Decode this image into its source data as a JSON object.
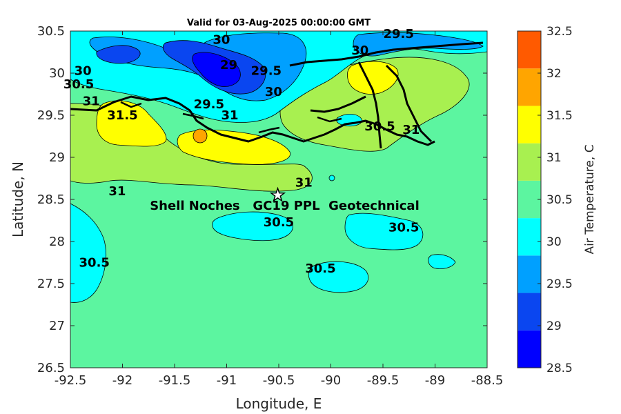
{
  "chart_data": {
    "type": "heatmap",
    "title": "Valid for 03-Aug-2025 00:00:00 GMT",
    "xlabel": "Longitude, E",
    "ylabel": "Latitude, N",
    "xlim": [
      -92.5,
      -88.5
    ],
    "ylim": [
      26.5,
      30.5
    ],
    "x_ticks": [
      "-92.5",
      "-92",
      "-91.5",
      "-91",
      "-90.5",
      "-90",
      "-89.5",
      "-89",
      "-88.5"
    ],
    "y_ticks": [
      "30.5",
      "30",
      "29.5",
      "29",
      "28.5",
      "28",
      "27.5",
      "27",
      "26.5"
    ],
    "colorbar": {
      "label": "Air Temperature, C",
      "levels": [
        28.5,
        29,
        29.5,
        30,
        30.5,
        31,
        31.5,
        32,
        32.5
      ],
      "tick_labels": [
        "28.5",
        "29",
        "29.5",
        "30",
        "30.5",
        "31",
        "31.5",
        "32",
        "32.5"
      ],
      "colors": [
        "#0000ff",
        "#0a46f0",
        "#00a0ff",
        "#00ffff",
        "#5cf5a0",
        "#a8f050",
        "#ffff00",
        "#ffa500",
        "#ff5a00"
      ]
    },
    "contour_labels": [
      {
        "text": "30",
        "lon": -91.05,
        "lat": 30.35
      },
      {
        "text": "29",
        "lon": -90.98,
        "lat": 30.05
      },
      {
        "text": "29.5",
        "lon": -90.62,
        "lat": 29.98
      },
      {
        "text": "30",
        "lon": -90.55,
        "lat": 29.73
      },
      {
        "text": "29.5",
        "lon": -89.35,
        "lat": 30.42
      },
      {
        "text": "30",
        "lon": -89.72,
        "lat": 30.22
      },
      {
        "text": "30",
        "lon": -92.38,
        "lat": 29.98
      },
      {
        "text": "30.5",
        "lon": -92.42,
        "lat": 29.82
      },
      {
        "text": "31",
        "lon": -92.3,
        "lat": 29.62
      },
      {
        "text": "31.5",
        "lon": -92.0,
        "lat": 29.45
      },
      {
        "text": "29.5",
        "lon": -91.17,
        "lat": 29.58
      },
      {
        "text": "31",
        "lon": -90.97,
        "lat": 29.45
      },
      {
        "text": "30.5",
        "lon": -89.53,
        "lat": 29.32
      },
      {
        "text": "31",
        "lon": -89.23,
        "lat": 29.28
      },
      {
        "text": "31",
        "lon": -92.05,
        "lat": 28.55
      },
      {
        "text": "31",
        "lon": -90.26,
        "lat": 28.65
      },
      {
        "text": "30.5",
        "lon": -90.5,
        "lat": 28.18
      },
      {
        "text": "30.5",
        "lon": -89.3,
        "lat": 28.12
      },
      {
        "text": "30.5",
        "lon": -90.1,
        "lat": 27.63
      },
      {
        "text": "30.5",
        "lon": -92.27,
        "lat": 27.7
      }
    ],
    "station": {
      "label": "Shell Noches   GC19 PPL  Geotechnical",
      "lon": -90.51,
      "lat": 28.55
    }
  }
}
